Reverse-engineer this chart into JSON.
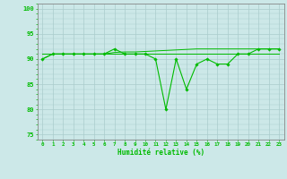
{
  "x": [
    0,
    1,
    2,
    3,
    4,
    5,
    6,
    7,
    8,
    9,
    10,
    11,
    12,
    13,
    14,
    15,
    16,
    17,
    18,
    19,
    20,
    21,
    22,
    23
  ],
  "y_main": [
    90,
    91,
    91,
    91,
    91,
    91,
    91,
    92,
    91,
    91,
    91,
    90,
    80,
    90,
    84,
    89,
    90,
    89,
    89,
    91,
    91,
    92,
    92,
    92
  ],
  "y_trend": [
    90,
    91,
    91,
    91,
    91,
    91,
    91,
    91.3,
    91.4,
    91.4,
    91.5,
    91.6,
    91.7,
    91.8,
    91.9,
    92,
    92,
    92,
    92,
    92,
    92,
    92,
    92,
    92
  ],
  "y_flat": [
    91,
    91,
    91,
    91,
    91,
    91,
    91,
    91,
    91,
    91,
    91,
    91,
    91,
    91,
    91,
    91,
    91,
    91,
    91,
    91,
    91,
    91,
    91,
    91
  ],
  "bg_color": "#cce8e8",
  "grid_color": "#aacccc",
  "line_color": "#00bb00",
  "marker_color": "#00bb00",
  "xlabel": "Humidité relative (%)",
  "ylim": [
    74,
    101
  ],
  "yticks": [
    75,
    80,
    85,
    90,
    95,
    100
  ],
  "xticks": [
    0,
    1,
    2,
    3,
    4,
    5,
    6,
    7,
    8,
    9,
    10,
    11,
    12,
    13,
    14,
    15,
    16,
    17,
    18,
    19,
    20,
    21,
    22,
    23
  ],
  "xlabel_color": "#00bb00",
  "tick_color": "#00bb00",
  "spine_color": "#888888"
}
